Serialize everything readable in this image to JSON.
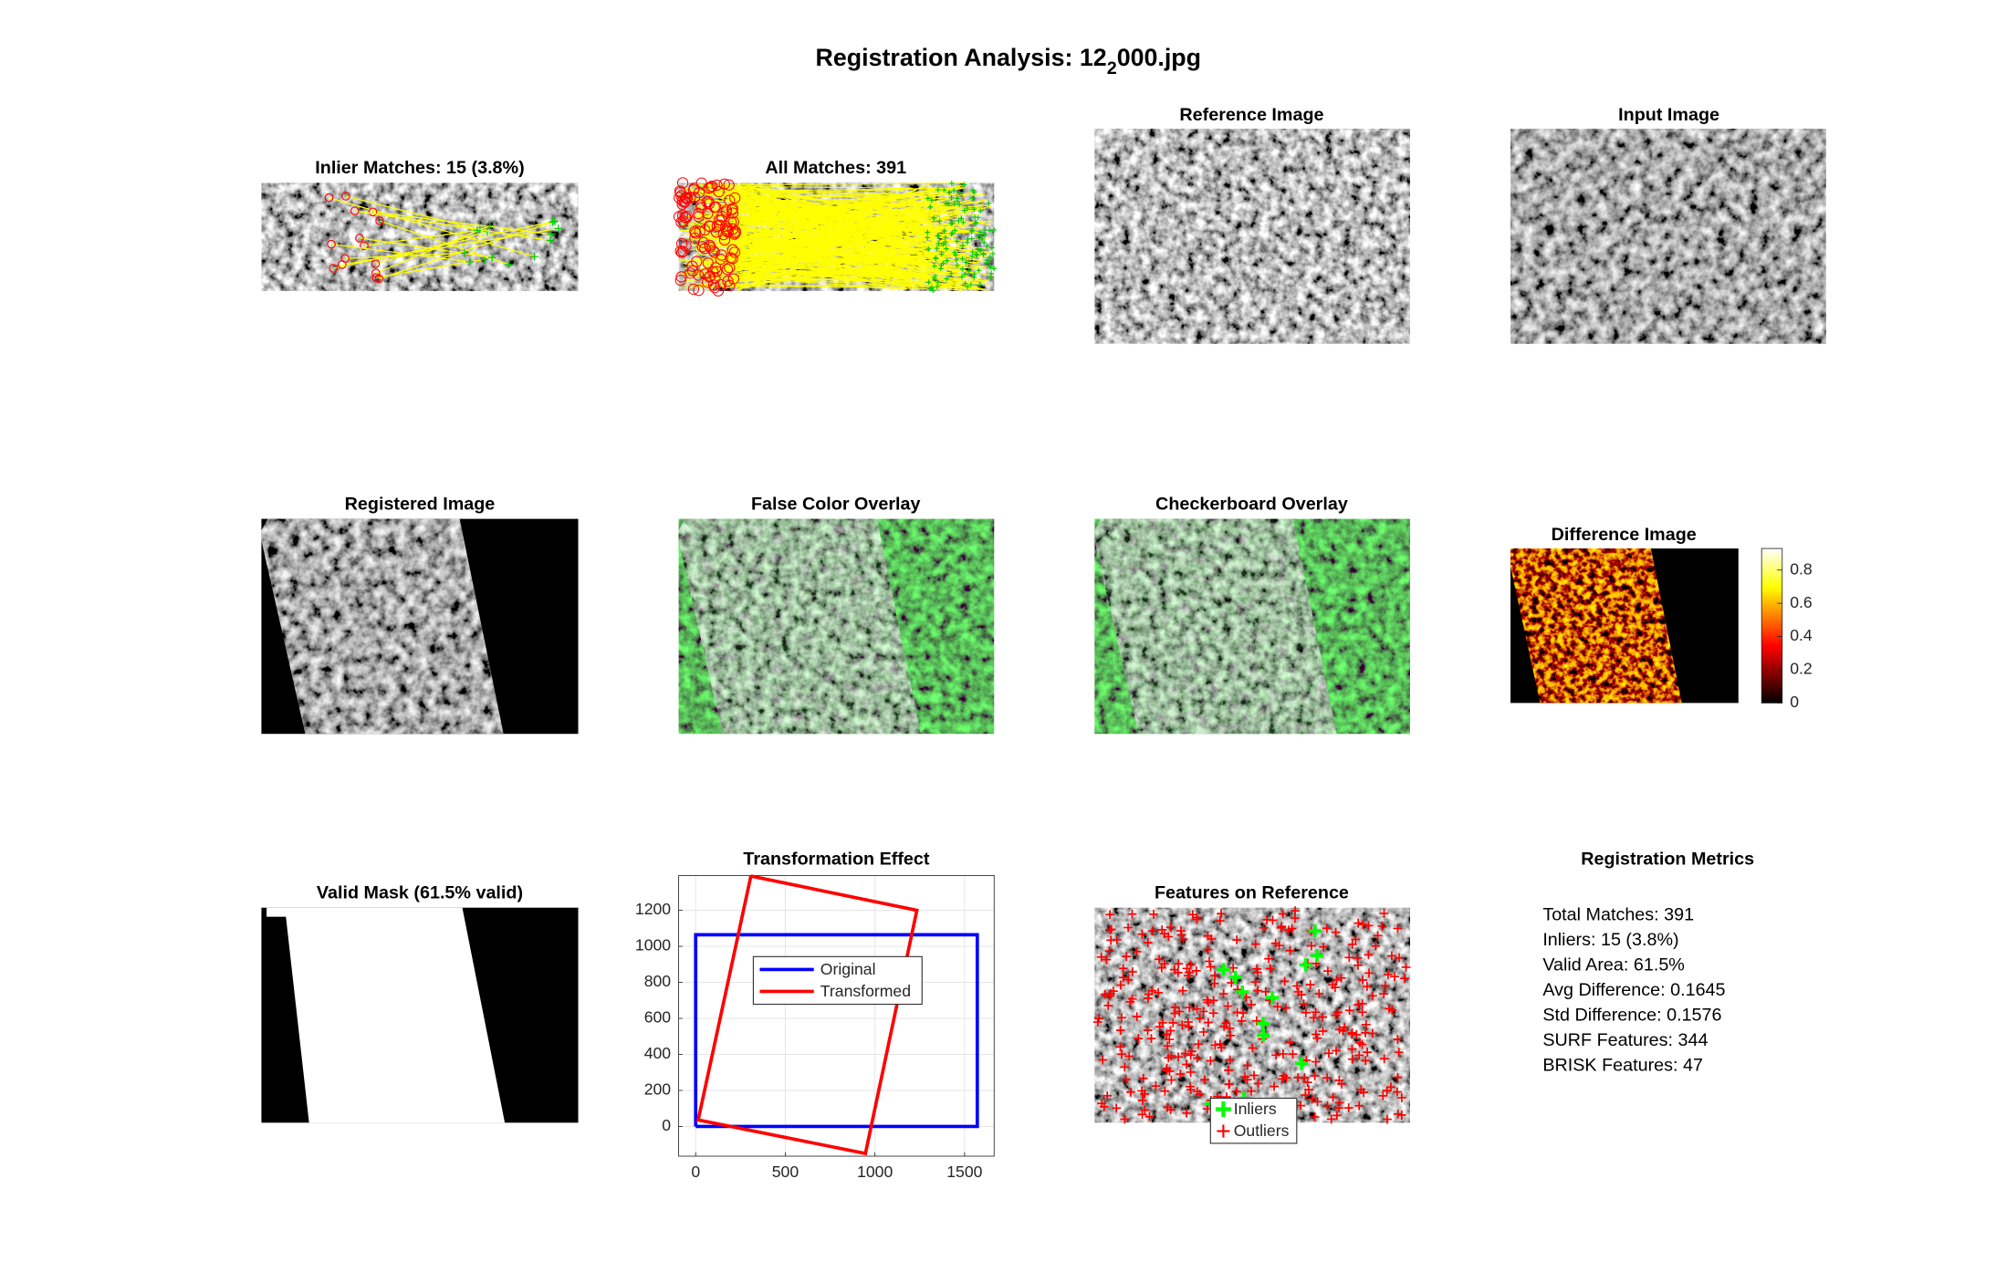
{
  "title": [
    "Registration Analysis: 12",
    "2",
    "000.jpg"
  ],
  "panels": [
    {
      "title": "Inlier Matches: 15 (3.8%)"
    },
    {
      "title": "All Matches: 391"
    },
    {
      "title": "Reference Image"
    },
    {
      "title": "Input Image"
    },
    {
      "title": "Registered Image"
    },
    {
      "title": "False Color Overlay"
    },
    {
      "title": "Checkerboard Overlay"
    },
    {
      "title": "Difference Image"
    },
    {
      "title": "Valid Mask (61.5% valid)"
    },
    {
      "title": "Features on Reference"
    }
  ],
  "colorbar": {
    "ylim": [
      0,
      0.93
    ],
    "yticks": [
      0,
      0.2,
      0.4,
      0.6,
      0.8
    ]
  },
  "features_legend": [
    "Inliers",
    "Outliers"
  ],
  "chart_data": {
    "type": "line",
    "title": "Transformation Effect",
    "series": [
      {
        "name": "Original",
        "color": "#0000ff",
        "x": [
          0,
          1571,
          1571,
          0,
          0
        ],
        "values": [
          0,
          0,
          1064,
          1064,
          0
        ]
      },
      {
        "name": "Transformed",
        "color": "#ff0000",
        "x": [
          308,
          1234,
          947,
          14,
          308
        ],
        "values": [
          1390,
          1200,
          -150,
          36,
          1390
        ]
      }
    ],
    "xlim": [
      -95,
      1665
    ],
    "ylim": [
      -165,
      1393
    ],
    "xticks": [
      0,
      500,
      1000,
      1500
    ],
    "yticks": [
      0,
      200,
      400,
      600,
      800,
      1000,
      1200
    ],
    "grid": true,
    "legend": "upper center"
  },
  "metrics": {
    "title": "Registration Metrics",
    "lines": [
      "Total Matches: 391",
      "Inliers: 15 (3.8%)",
      "Valid Area: 61.5%",
      "Avg Difference: 0.1645",
      "Std Difference: 0.1576",
      "SURF Features: 344",
      "BRISK Features: 47"
    ]
  }
}
